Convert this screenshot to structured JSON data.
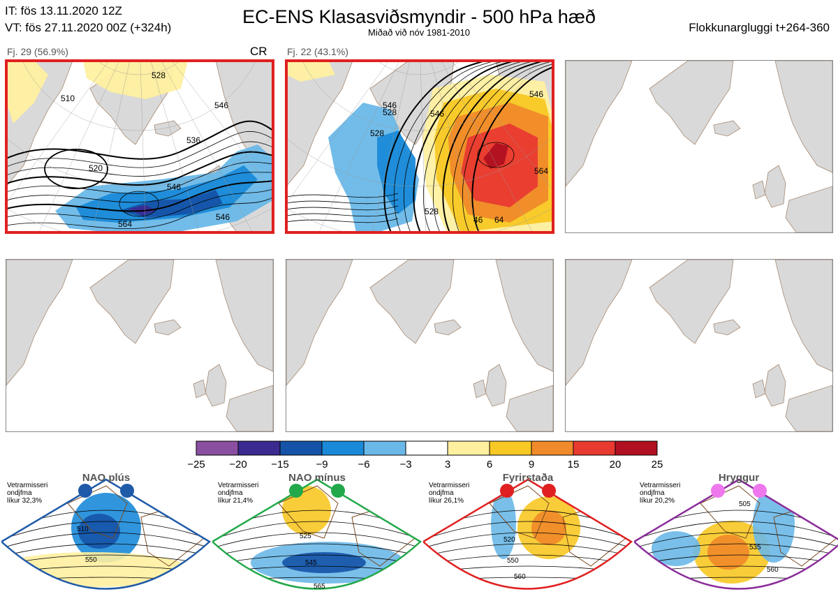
{
  "header": {
    "it_line": "IT: fös 13.11.2020 12Z",
    "vt_line": "VT: fös 27.11.2020 00Z  (+324h)",
    "title": "EC-ENS Klasasviðsmyndir - 500 hPa hæð",
    "subtitle": "Miðað við nóv 1981-2010",
    "window_label": "Flokkunargluggi t+264-360"
  },
  "colors": {
    "land": "#d9d9d9",
    "coast": "#7a4a22",
    "frame_red": "#e02020",
    "nao_plus": "#1f5aa8",
    "nao_minus": "#22a84a",
    "blocking": "#e02020",
    "ridge": "#8a2c9a",
    "dot_ridge": "#ee77ee"
  },
  "chart_data": [
    {
      "type": "heatmap",
      "name": "cluster-1",
      "title": "Fj. 29 (56.9%)",
      "regime_code": "CR",
      "contour_labels": [
        "510",
        "520",
        "528",
        "536",
        "546",
        "546",
        "546",
        "564"
      ],
      "anomaly_centers": [
        {
          "sign": "negative",
          "max_abs": 15
        },
        {
          "sign": "positive",
          "max_abs": 3
        }
      ]
    },
    {
      "type": "heatmap",
      "name": "cluster-2",
      "title": "Fj. 22 (43.1%)",
      "contour_labels": [
        "528",
        "528",
        "546",
        "546",
        "546",
        "528",
        "564",
        "46",
        "64"
      ],
      "anomaly_centers": [
        {
          "sign": "positive",
          "max_abs": 25
        },
        {
          "sign": "negative",
          "max_abs": 9
        }
      ]
    },
    {
      "type": "colorbar",
      "name": "anomaly-colorbar",
      "ticks": [
        "−25",
        "−20",
        "−15",
        "−9",
        "−6",
        "−3",
        "3",
        "6",
        "9",
        "15",
        "20",
        "25"
      ],
      "bins": [
        {
          "from": -25,
          "to": -20,
          "color": "#8a4fa0"
        },
        {
          "from": -20,
          "to": -15,
          "color": "#3b2a90"
        },
        {
          "from": -15,
          "to": -9,
          "color": "#1553a8"
        },
        {
          "from": -9,
          "to": -6,
          "color": "#1a8ad8"
        },
        {
          "from": -6,
          "to": -3,
          "color": "#6ab8e8"
        },
        {
          "from": -3,
          "to": 3,
          "color": "#ffffff"
        },
        {
          "from": 3,
          "to": 6,
          "color": "#fff0a0"
        },
        {
          "from": 6,
          "to": 9,
          "color": "#f8c824"
        },
        {
          "from": 9,
          "to": 15,
          "color": "#f08a2a"
        },
        {
          "from": 15,
          "to": 20,
          "color": "#e83a30"
        },
        {
          "from": 20,
          "to": 25,
          "color": "#b01020"
        }
      ]
    }
  ],
  "regimes": [
    {
      "name": "NAO plús",
      "note_lines": [
        "Vetrarmisseri",
        "ondjfma",
        "líkur 32,3%"
      ],
      "labels": [
        "510",
        "550"
      ]
    },
    {
      "name": "NAO mínus",
      "note_lines": [
        "Vetrarmisseri",
        "ondjfma",
        "líkur 21,4%"
      ],
      "labels": [
        "525",
        "545",
        "565"
      ]
    },
    {
      "name": "Fyrirstaða",
      "note_lines": [
        "Vetrarmisseri",
        "ondjfma",
        "líkur 26,1%"
      ],
      "labels": [
        "520",
        "550",
        "560"
      ]
    },
    {
      "name": "Hryggur",
      "note_lines": [
        "Vetrarmisseri",
        "ondjfma",
        "líkur 20,2%"
      ],
      "labels": [
        "505",
        "535",
        "560"
      ]
    }
  ]
}
